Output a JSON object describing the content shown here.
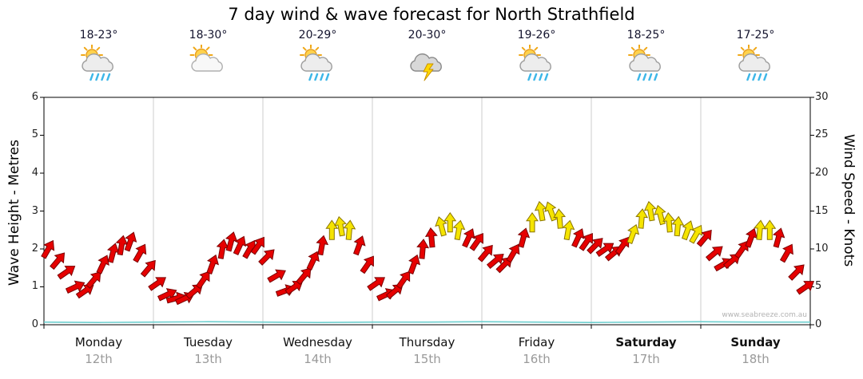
{
  "title": "7 day wind & wave forecast for North Strathfield",
  "watermark": "www.seabreeze.com.au",
  "axes": {
    "left_label": "Wave Height - Metres",
    "right_label": "Wind Speed - Knots",
    "left_ticks": [
      0,
      1,
      2,
      3,
      4,
      5,
      6
    ],
    "right_ticks": [
      0,
      5,
      10,
      15,
      20,
      25,
      30
    ]
  },
  "days": [
    {
      "name": "Monday",
      "date": "12th",
      "temp": "18-23°",
      "icon": "sun-showers"
    },
    {
      "name": "Tuesday",
      "date": "13th",
      "temp": "18-30°",
      "icon": "partly-cloudy"
    },
    {
      "name": "Wednesday",
      "date": "14th",
      "temp": "20-29°",
      "icon": "sun-showers"
    },
    {
      "name": "Thursday",
      "date": "15th",
      "temp": "20-30°",
      "icon": "thunderstorm"
    },
    {
      "name": "Friday",
      "date": "16th",
      "temp": "19-26°",
      "icon": "sun-showers"
    },
    {
      "name": "Saturday",
      "date": "17th",
      "temp": "18-25°",
      "icon": "sun-showers"
    },
    {
      "name": "Sunday",
      "date": "18th",
      "temp": "17-25°",
      "icon": "sun-showers"
    }
  ],
  "chart_data": {
    "type": "scatter",
    "subtype": "wind-direction-arrows",
    "title": "7 day wind & wave forecast for North Strathfield",
    "x_unit": "days",
    "x_range": [
      0,
      7
    ],
    "categories": [
      "Monday",
      "Tuesday",
      "Wednesday",
      "Thursday",
      "Friday",
      "Saturday",
      "Sunday"
    ],
    "dates": [
      "12th",
      "13th",
      "14th",
      "15th",
      "16th",
      "17th",
      "18th"
    ],
    "grid": "day-separators-only",
    "wind": {
      "ylabel": "Wind Speed - Knots",
      "ylim": [
        0,
        30
      ],
      "yticks": [
        0,
        5,
        10,
        15,
        20,
        25,
        30
      ],
      "arrow_colors": {
        "moderate": "#e60000",
        "moderate_outline": "#7a0000",
        "strong": "#f5e400",
        "strong_outline": "#8a7400",
        "strong_threshold_knots": 12
      },
      "points": [
        [
          0.04,
          10,
          30
        ],
        [
          0.13,
          8.5,
          40
        ],
        [
          0.21,
          7,
          55
        ],
        [
          0.29,
          5,
          65
        ],
        [
          0.38,
          4.5,
          55
        ],
        [
          0.46,
          6,
          40
        ],
        [
          0.54,
          8,
          25
        ],
        [
          0.63,
          9.5,
          15
        ],
        [
          0.71,
          10.5,
          10
        ],
        [
          0.79,
          11,
          20
        ],
        [
          0.88,
          9.5,
          30
        ],
        [
          0.96,
          7.5,
          40
        ],
        [
          1.04,
          5.5,
          55
        ],
        [
          1.13,
          4,
          65
        ],
        [
          1.21,
          3.5,
          75
        ],
        [
          1.29,
          3.5,
          65
        ],
        [
          1.38,
          4.5,
          50
        ],
        [
          1.46,
          6,
          35
        ],
        [
          1.54,
          8,
          20
        ],
        [
          1.63,
          10,
          10
        ],
        [
          1.71,
          11,
          15
        ],
        [
          1.79,
          10.5,
          25
        ],
        [
          1.88,
          10,
          30
        ],
        [
          1.96,
          10.5,
          35
        ],
        [
          2.04,
          9,
          45
        ],
        [
          2.13,
          6.5,
          60
        ],
        [
          2.21,
          4.5,
          70
        ],
        [
          2.29,
          5,
          55
        ],
        [
          2.38,
          6.5,
          40
        ],
        [
          2.46,
          8.5,
          25
        ],
        [
          2.54,
          10.5,
          10
        ],
        [
          2.63,
          12.5,
          0
        ],
        [
          2.71,
          13,
          -10
        ],
        [
          2.79,
          12.5,
          5
        ],
        [
          2.88,
          10.5,
          20
        ],
        [
          2.96,
          8,
          35
        ],
        [
          3.04,
          5.5,
          55
        ],
        [
          3.13,
          4,
          65
        ],
        [
          3.21,
          4.5,
          50
        ],
        [
          3.29,
          6,
          35
        ],
        [
          3.38,
          8,
          20
        ],
        [
          3.46,
          10,
          5
        ],
        [
          3.54,
          11.5,
          -5
        ],
        [
          3.63,
          13,
          -15
        ],
        [
          3.71,
          13.5,
          0
        ],
        [
          3.79,
          12.5,
          10
        ],
        [
          3.88,
          11.5,
          25
        ],
        [
          3.96,
          11,
          35
        ],
        [
          4.04,
          9.5,
          40
        ],
        [
          4.13,
          8.5,
          50
        ],
        [
          4.21,
          8,
          45
        ],
        [
          4.29,
          9.5,
          30
        ],
        [
          4.38,
          11.5,
          15
        ],
        [
          4.46,
          13.5,
          0
        ],
        [
          4.54,
          15,
          -10
        ],
        [
          4.63,
          15,
          -20
        ],
        [
          4.71,
          14,
          -5
        ],
        [
          4.79,
          12.5,
          10
        ],
        [
          4.88,
          11.5,
          25
        ],
        [
          4.96,
          11,
          35
        ],
        [
          5.04,
          10.5,
          45
        ],
        [
          5.13,
          10,
          55
        ],
        [
          5.21,
          9.5,
          50
        ],
        [
          5.29,
          10.5,
          35
        ],
        [
          5.38,
          12,
          20
        ],
        [
          5.46,
          14,
          5
        ],
        [
          5.54,
          15,
          -10
        ],
        [
          5.63,
          14.5,
          -15
        ],
        [
          5.71,
          13.5,
          -5
        ],
        [
          5.79,
          13,
          5
        ],
        [
          5.88,
          12.5,
          20
        ],
        [
          5.96,
          12,
          30
        ],
        [
          6.04,
          11.5,
          40
        ],
        [
          6.13,
          9.5,
          50
        ],
        [
          6.21,
          8,
          60
        ],
        [
          6.29,
          8.5,
          50
        ],
        [
          6.38,
          10,
          35
        ],
        [
          6.46,
          11.5,
          20
        ],
        [
          6.54,
          12.5,
          5
        ],
        [
          6.63,
          12.5,
          0
        ],
        [
          6.71,
          11.5,
          15
        ],
        [
          6.79,
          9.5,
          30
        ],
        [
          6.88,
          7,
          45
        ],
        [
          6.96,
          5,
          55
        ]
      ]
    },
    "wave": {
      "ylabel": "Wave Height - Metres",
      "ylim": [
        0,
        6
      ],
      "yticks": [
        0,
        1,
        2,
        3,
        4,
        5,
        6
      ],
      "color": "#6ecfcf",
      "x": [
        0,
        0.5,
        1,
        1.5,
        2,
        2.5,
        3,
        3.5,
        4,
        4.5,
        5,
        5.5,
        6,
        6.5,
        7
      ],
      "values": [
        0.07,
        0.06,
        0.07,
        0.08,
        0.07,
        0.06,
        0.07,
        0.07,
        0.08,
        0.07,
        0.06,
        0.07,
        0.08,
        0.07,
        0.07
      ]
    }
  }
}
